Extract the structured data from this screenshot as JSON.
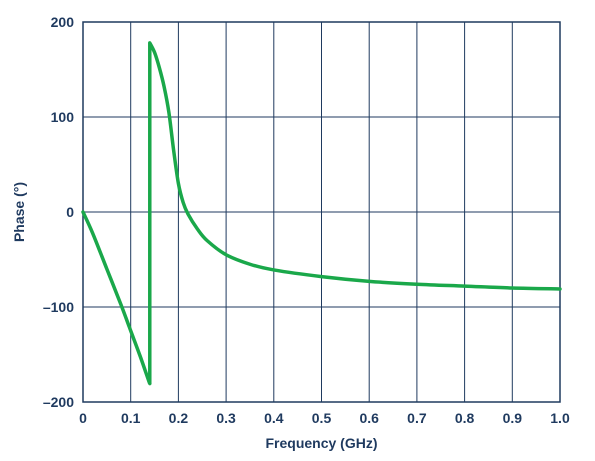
{
  "chart_data": {
    "type": "line",
    "title": "",
    "xlabel": "Frequency (GHz)",
    "ylabel": "Phase (°)",
    "xlim": [
      0,
      1.0
    ],
    "ylim": [
      -200,
      200
    ],
    "grid": true,
    "x_ticks": [
      0,
      0.1,
      0.2,
      0.3,
      0.4,
      0.5,
      0.6,
      0.7,
      0.8,
      0.9,
      1.0
    ],
    "x_tick_labels": [
      "0",
      "0.1",
      "0.2",
      "0.3",
      "0.4",
      "0.5",
      "0.6",
      "0.7",
      "0.8",
      "0.9",
      "1.0"
    ],
    "y_ticks": [
      -200,
      -100,
      0,
      100,
      200
    ],
    "y_tick_labels": [
      "–200",
      "–100",
      "0",
      "100",
      "200"
    ],
    "series": [
      {
        "color": "#1aa84a",
        "x": [
          0,
          0.02,
          0.05,
          0.08,
          0.1,
          0.12,
          0.138,
          0.14,
          0.14,
          0.15,
          0.16,
          0.17,
          0.18,
          0.19,
          0.2,
          0.21,
          0.22,
          0.24,
          0.26,
          0.3,
          0.35,
          0.4,
          0.5,
          0.6,
          0.7,
          0.8,
          0.9,
          1.0
        ],
        "y": [
          0,
          -22,
          -60,
          -98,
          -125,
          -152,
          -178,
          -180,
          178,
          168,
          152,
          132,
          105,
          65,
          30,
          10,
          -2,
          -18,
          -30,
          -45,
          -55,
          -61,
          -68,
          -73,
          -76,
          -78,
          -80,
          -81
        ]
      }
    ]
  },
  "colors": {
    "axis": "#1f3a5f",
    "series": "#1aa84a",
    "background": "#ffffff"
  }
}
